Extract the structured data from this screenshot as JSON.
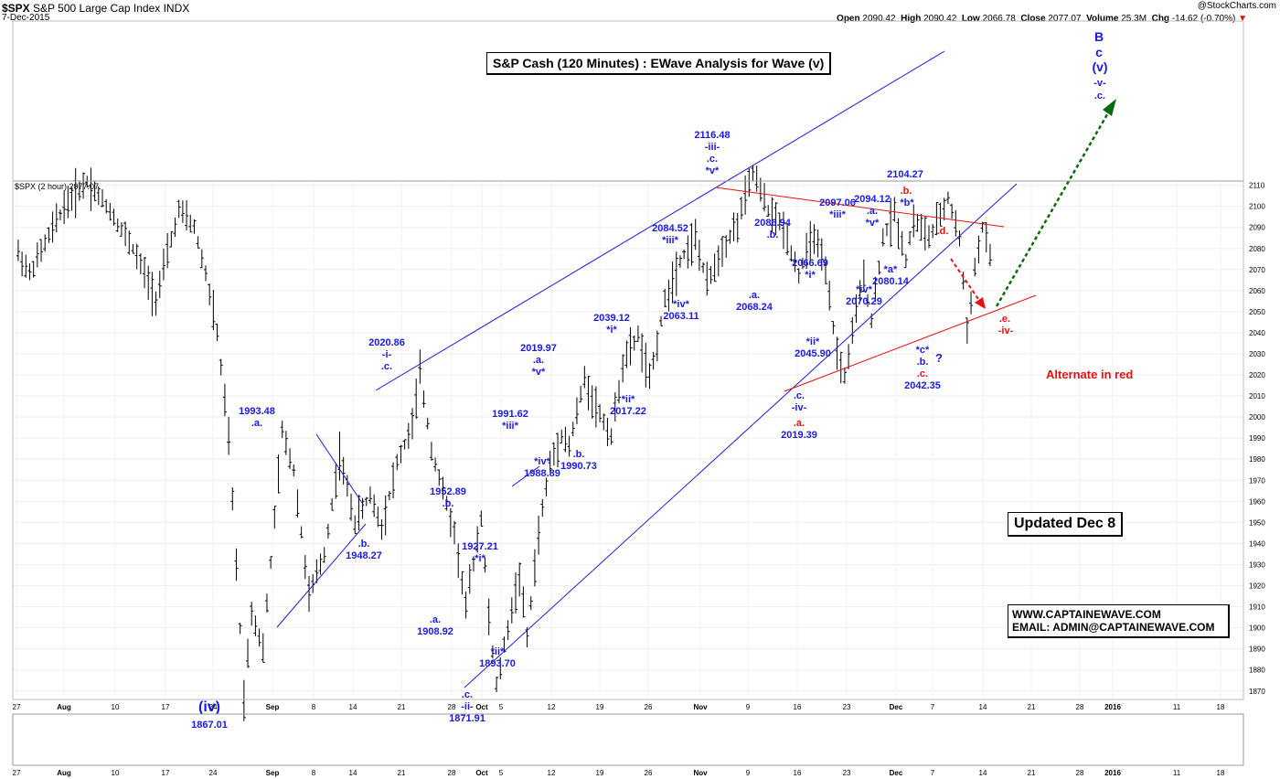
{
  "header": {
    "symbol": "$SPX",
    "name": "S&P 500 Large Cap Index",
    "exchange": "INDX",
    "date": "7-Dec-2015",
    "brand": "@StockCharts.com",
    "open_label": "Open",
    "open": "2090.42",
    "high_label": "High",
    "high": "2090.42",
    "low_label": "Low",
    "low": "2066.78",
    "close_label": "Close",
    "close": "2077.07",
    "volume_label": "Volume",
    "volume": "25.3M",
    "chg_label": "Chg",
    "chg": "-14.62 (-0.70%)"
  },
  "legend_text": "$SPX (2 hour) 2077.07",
  "title_box": "S&P Cash (120 Minutes) : EWave Analysis for Wave (v)",
  "updated_box": "Updated Dec 8",
  "contact": {
    "website": "WWW.CAPTAINEWAVE.COM",
    "email": "EMAIL: ADMIN@CAPTAINEWAVE.COM"
  },
  "alternate_note": "Alternate in red",
  "colors": {
    "blue": "#1a1ae6",
    "red": "#e81010",
    "green": "#0a6a0a",
    "bars": "#000000"
  },
  "chart_data": {
    "type": "ohlc",
    "y_ticks": [
      1870,
      1880,
      1890,
      1900,
      1910,
      1920,
      1930,
      1940,
      1950,
      1960,
      1970,
      1980,
      1990,
      2000,
      2010,
      2020,
      2030,
      2040,
      2050,
      2060,
      2070,
      2080,
      2090,
      2100,
      2110
    ],
    "x_ticks": [
      "27",
      "Aug",
      "10",
      "17",
      "24",
      "Sep",
      "8",
      "14",
      "21",
      "28",
      "Oct",
      "5",
      "12",
      "19",
      "26",
      "Nov",
      "9",
      "16",
      "23",
      "Dec",
      "7",
      "14",
      "21",
      "28",
      "2016",
      "11",
      "18"
    ],
    "price_path": [
      {
        "x": 0,
        "y": 2078
      },
      {
        "x": 3,
        "y": 2068
      },
      {
        "x": 12,
        "y": 2100
      },
      {
        "x": 18,
        "y": 2112
      },
      {
        "x": 24,
        "y": 2098
      },
      {
        "x": 30,
        "y": 2080
      },
      {
        "x": 36,
        "y": 2056
      },
      {
        "x": 42,
        "y": 2098
      },
      {
        "x": 46,
        "y": 2090
      },
      {
        "x": 49,
        "y": 2068
      },
      {
        "x": 52,
        "y": 2040
      },
      {
        "x": 55,
        "y": 1990
      },
      {
        "x": 58,
        "y": 1900
      },
      {
        "x": 59,
        "y": 1867
      },
      {
        "x": 61,
        "y": 1908
      },
      {
        "x": 64,
        "y": 1890
      },
      {
        "x": 69,
        "y": 1993
      },
      {
        "x": 72,
        "y": 1975
      },
      {
        "x": 76,
        "y": 1915
      },
      {
        "x": 80,
        "y": 1935
      },
      {
        "x": 84,
        "y": 1982
      },
      {
        "x": 88,
        "y": 1950
      },
      {
        "x": 92,
        "y": 1963
      },
      {
        "x": 95,
        "y": 1948
      },
      {
        "x": 99,
        "y": 1978
      },
      {
        "x": 103,
        "y": 1996
      },
      {
        "x": 105,
        "y": 2021
      },
      {
        "x": 108,
        "y": 1985
      },
      {
        "x": 111,
        "y": 1965
      },
      {
        "x": 114,
        "y": 1945
      },
      {
        "x": 117,
        "y": 1910
      },
      {
        "x": 121,
        "y": 1953
      },
      {
        "x": 123,
        "y": 1905
      },
      {
        "x": 125,
        "y": 1872
      },
      {
        "x": 128,
        "y": 1900
      },
      {
        "x": 131,
        "y": 1925
      },
      {
        "x": 133,
        "y": 1895
      },
      {
        "x": 136,
        "y": 1945
      },
      {
        "x": 139,
        "y": 1978
      },
      {
        "x": 142,
        "y": 1992
      },
      {
        "x": 144,
        "y": 1986
      },
      {
        "x": 148,
        "y": 2018
      },
      {
        "x": 151,
        "y": 2005
      },
      {
        "x": 155,
        "y": 1991
      },
      {
        "x": 158,
        "y": 2025
      },
      {
        "x": 162,
        "y": 2039
      },
      {
        "x": 165,
        "y": 2017
      },
      {
        "x": 169,
        "y": 2055
      },
      {
        "x": 173,
        "y": 2075
      },
      {
        "x": 177,
        "y": 2085
      },
      {
        "x": 180,
        "y": 2063
      },
      {
        "x": 184,
        "y": 2080
      },
      {
        "x": 188,
        "y": 2092
      },
      {
        "x": 192,
        "y": 2116
      },
      {
        "x": 196,
        "y": 2098
      },
      {
        "x": 200,
        "y": 2090
      },
      {
        "x": 204,
        "y": 2068
      },
      {
        "x": 208,
        "y": 2087
      },
      {
        "x": 211,
        "y": 2068
      },
      {
        "x": 214,
        "y": 2030
      },
      {
        "x": 216,
        "y": 2019
      },
      {
        "x": 219,
        "y": 2050
      },
      {
        "x": 221,
        "y": 2067
      },
      {
        "x": 223,
        "y": 2046
      },
      {
        "x": 226,
        "y": 2085
      },
      {
        "x": 229,
        "y": 2097
      },
      {
        "x": 232,
        "y": 2075
      },
      {
        "x": 234,
        "y": 2094
      },
      {
        "x": 238,
        "y": 2085
      },
      {
        "x": 241,
        "y": 2095
      },
      {
        "x": 243,
        "y": 2104
      },
      {
        "x": 246,
        "y": 2085
      },
      {
        "x": 248,
        "y": 2042
      },
      {
        "x": 250,
        "y": 2070
      },
      {
        "x": 252,
        "y": 2090
      },
      {
        "x": 254,
        "y": 2077
      }
    ],
    "labels": [
      {
        "x": 59,
        "y": 1867,
        "text": "(iv)",
        "sub": "1867.01",
        "color": "blue",
        "pos": "below"
      },
      {
        "x": 69,
        "y": 1993,
        "lines": [
          "1993.48",
          ".a."
        ],
        "color": "blue",
        "pos": "above"
      },
      {
        "x": 99,
        "y": 1948,
        "lines": [
          ".b.",
          "1948.27"
        ],
        "color": "blue",
        "pos": "below"
      },
      {
        "x": 105,
        "y": 2021,
        "lines": [
          "2020.86",
          "-i-",
          ".c."
        ],
        "color": "blue",
        "pos": "above"
      },
      {
        "x": 117,
        "y": 1910,
        "lines": [
          ".a.",
          "1908.92"
        ],
        "color": "blue",
        "pos": "below"
      },
      {
        "x": 121,
        "y": 1953,
        "lines": [
          "1952.89",
          ".b."
        ],
        "color": "blue",
        "pos": "above"
      },
      {
        "x": 125,
        "y": 1872,
        "lines": [
          ".c.",
          "-ii-",
          "1871.91"
        ],
        "color": "blue",
        "pos": "below"
      },
      {
        "x": 131,
        "y": 1925,
        "lines": [
          "1927.21",
          "*i*"
        ],
        "color": "blue",
        "pos": "above"
      },
      {
        "x": 133,
        "y": 1895,
        "lines": [
          "*ii*",
          "1893.70"
        ],
        "color": "blue",
        "pos": "below"
      },
      {
        "x": 140,
        "y": 1992,
        "lines": [
          "1991.62",
          "*iii*"
        ],
        "color": "blue",
        "pos": "above"
      },
      {
        "x": 145,
        "y": 1986,
        "lines": [
          "*iv*",
          "1988.89"
        ],
        "color": "blue",
        "pos": "below"
      },
      {
        "x": 148,
        "y": 2018,
        "lines": [
          "2019.97",
          ".a.",
          "*v*"
        ],
        "color": "blue",
        "pos": "above"
      },
      {
        "x": 155,
        "y": 1991,
        "lines": [
          ".b.",
          "1990.73"
        ],
        "color": "blue",
        "pos": "below"
      },
      {
        "x": 162,
        "y": 2039,
        "lines": [
          "2039.12",
          "*i*"
        ],
        "color": "blue",
        "pos": "above"
      },
      {
        "x": 165,
        "y": 2017,
        "lines": [
          "*ii*",
          "2017.22"
        ],
        "color": "blue",
        "pos": "below"
      },
      {
        "x": 177,
        "y": 2085,
        "lines": [
          "2084.52",
          "*iii*"
        ],
        "color": "blue",
        "pos": "above"
      },
      {
        "x": 180,
        "y": 2063,
        "lines": [
          "*iv*",
          "2063.11"
        ],
        "color": "blue",
        "pos": "below"
      },
      {
        "x": 192,
        "y": 2116,
        "lines": [
          "2116.48",
          "-iii-",
          ".c.",
          "*v*"
        ],
        "color": "blue",
        "pos": "above"
      },
      {
        "x": 204,
        "y": 2068,
        "lines": [
          ".a.",
          "2068.24"
        ],
        "color": "blue",
        "pos": "below"
      },
      {
        "x": 208,
        "y": 2087,
        "lines": [
          "2086.94",
          ".b."
        ],
        "color": "blue",
        "pos": "above"
      },
      {
        "x": 216,
        "y": 2019,
        "lines": [
          ".c.",
          "-iv-"
        ],
        "color": "blue",
        "pos": "below"
      },
      {
        "x": 216,
        "y": 2005,
        "lines": [
          ".a.",
          "2019.39"
        ],
        "color": "redblue",
        "pos": "below"
      },
      {
        "x": 220,
        "y": 2067,
        "lines": [
          "2066.69",
          "*i*"
        ],
        "color": "blue",
        "pos": "above"
      },
      {
        "x": 223,
        "y": 2046,
        "lines": [
          "*ii*",
          "2045.90"
        ],
        "color": "blue",
        "pos": "below"
      },
      {
        "x": 227,
        "y": 2097,
        "lines": [
          "2097.06",
          "*iii*"
        ],
        "color": "blue",
        "pos": "above"
      },
      {
        "x": 232,
        "y": 2075,
        "lines": [
          "*iv*",
          "2070.29"
        ],
        "color": "blue",
        "pos": "below"
      },
      {
        "x": 235,
        "y": 2094,
        "lines": [
          "2094.12",
          ".a.",
          "*v*"
        ],
        "color": "blue",
        "pos": "above"
      },
      {
        "x": 239,
        "y": 2085,
        "lines": [
          "*a*",
          "2080.14"
        ],
        "color": "blue",
        "pos": "below"
      },
      {
        "x": 243,
        "y": 2104,
        "lines": [
          "2104.27"
        ],
        "color": "blue",
        "pos": "above"
      },
      {
        "x": 248,
        "y": 2042,
        "lines": [
          "*c*",
          ".b.",
          ".c.",
          "2042.35"
        ],
        "color": "mixed",
        "pos": "below"
      }
    ],
    "extra_text": [
      {
        "text": ".b.",
        "color": "red"
      },
      {
        "text": "*b*",
        "color": "blue"
      },
      {
        "text": ".d.",
        "color": "red"
      },
      {
        "text": "?",
        "color": "blue"
      },
      {
        "text": ".e.",
        "color": "red"
      },
      {
        "text": "-iv-",
        "color": "red"
      },
      {
        "text": "B",
        "color": "blue"
      },
      {
        "text": "c",
        "color": "blue"
      },
      {
        "text": "(v)",
        "color": "blue"
      },
      {
        "text": "-v-",
        "color": "blue"
      },
      {
        "text": ".c.",
        "color": "blue"
      }
    ]
  }
}
